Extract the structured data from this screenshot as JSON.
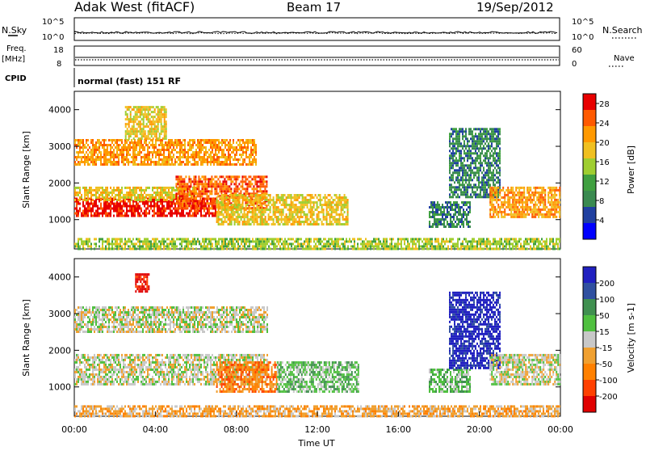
{
  "header": {
    "station": "Adak West (fitACF)",
    "beam": "Beam 17",
    "date": "19/Sep/2012"
  },
  "left_labels": {
    "nsky": "N.Sky",
    "freq": "Freq.",
    "freq_unit": "[MHz]",
    "cpid": "CPID"
  },
  "right_labels": {
    "nsearch": "N.Search",
    "nave": "Nave"
  },
  "cpid_text": "normal (fast) 151 RF",
  "colors": {
    "power": [
      "#0000ff",
      "#2040a0",
      "#3a8a50",
      "#40a040",
      "#9fce30",
      "#f0c020",
      "#ff9900",
      "#ff5a00",
      "#e80000"
    ],
    "velocity": [
      "#e00000",
      "#ff4000",
      "#ff8000",
      "#f0a030",
      "#c8c8c8",
      "#50c040",
      "#409050",
      "#3050a0",
      "#2020c0"
    ]
  },
  "chart_data": [
    {
      "type": "line",
      "title": "N.Sky / N.Search",
      "y_ticks_left": [
        "10^5",
        "10^0"
      ],
      "y_ticks_right": [
        "10^5",
        "10^0"
      ],
      "series": [
        {
          "name": "N.Sky"
        },
        {
          "name": "N.Search"
        }
      ]
    },
    {
      "type": "line",
      "title": "Freq / Nave",
      "y_ticks_left": [
        "18",
        "8"
      ],
      "y_ticks_right": [
        "60",
        "0"
      ],
      "series": [
        {
          "name": "Freq."
        },
        {
          "name": "Nave"
        }
      ]
    },
    {
      "type": "heatmap",
      "ylabel": "Slant Range [km]",
      "ylim": [
        200,
        4500
      ],
      "y_ticks": [
        1000,
        2000,
        3000,
        4000
      ],
      "colorbar_label": "Power [dB]",
      "colorbar_ticks": [
        4,
        8,
        12,
        16,
        20,
        24,
        28
      ],
      "colorbar_range": [
        0,
        30
      ],
      "regions": [
        {
          "t0": 0.0,
          "t1": 7.0,
          "r0": 1100,
          "r1": 1600,
          "level": 8
        },
        {
          "t0": 0.0,
          "t1": 6.0,
          "r0": 1550,
          "r1": 1900,
          "level": 5
        },
        {
          "t0": 5.0,
          "t1": 9.5,
          "r0": 1300,
          "r1": 2200,
          "level": 7
        },
        {
          "t0": 7.0,
          "t1": 13.5,
          "r0": 900,
          "r1": 1700,
          "level": 5
        },
        {
          "t0": 0.0,
          "t1": 9.0,
          "r0": 2500,
          "r1": 3200,
          "level": 6
        },
        {
          "t0": 2.5,
          "t1": 4.5,
          "r0": 3200,
          "r1": 4100,
          "level": 5
        },
        {
          "t0": 17.5,
          "t1": 19.5,
          "r0": 800,
          "r1": 1500,
          "level": 2
        },
        {
          "t0": 18.5,
          "t1": 21.0,
          "r0": 1600,
          "r1": 3500,
          "level": 2
        },
        {
          "t0": 20.5,
          "t1": 24.0,
          "r0": 1100,
          "r1": 1900,
          "level": 6
        },
        {
          "t0": 0.0,
          "t1": 24.0,
          "r0": 200,
          "r1": 500,
          "level": 4
        }
      ]
    },
    {
      "type": "heatmap",
      "xlabel": "Time UT",
      "ylabel": "Slant Range [km]",
      "x_ticks": [
        "00:00",
        "04:00",
        "08:00",
        "12:00",
        "16:00",
        "20:00",
        "00:00"
      ],
      "xlim": [
        0,
        24
      ],
      "ylim": [
        200,
        4500
      ],
      "y_ticks": [
        1000,
        2000,
        3000,
        4000
      ],
      "colorbar_label": "Velocity [m s-1]",
      "colorbar_ticks": [
        200,
        100,
        50,
        15,
        -15,
        -50,
        -100,
        -200
      ],
      "regions": [
        {
          "t0": 0.0,
          "t1": 9.5,
          "r0": 1100,
          "r1": 1900,
          "level": 4
        },
        {
          "t0": 0.0,
          "t1": 9.5,
          "r0": 2500,
          "r1": 3200,
          "level": 4
        },
        {
          "t0": 7.0,
          "t1": 10.0,
          "r0": 900,
          "r1": 1700,
          "level": 2
        },
        {
          "t0": 10.0,
          "t1": 14.0,
          "r0": 900,
          "r1": 1700,
          "level": 5
        },
        {
          "t0": 17.5,
          "t1": 19.5,
          "r0": 900,
          "r1": 1500,
          "level": 5
        },
        {
          "t0": 18.5,
          "t1": 21.0,
          "r0": 1500,
          "r1": 3600,
          "level": 8
        },
        {
          "t0": 20.5,
          "t1": 24.0,
          "r0": 1100,
          "r1": 1900,
          "level": 4
        },
        {
          "t0": 3.0,
          "t1": 3.7,
          "r0": 3600,
          "r1": 4100,
          "level": 0
        },
        {
          "t0": 0.0,
          "t1": 24.0,
          "r0": 200,
          "r1": 500,
          "level": 3
        }
      ]
    }
  ]
}
